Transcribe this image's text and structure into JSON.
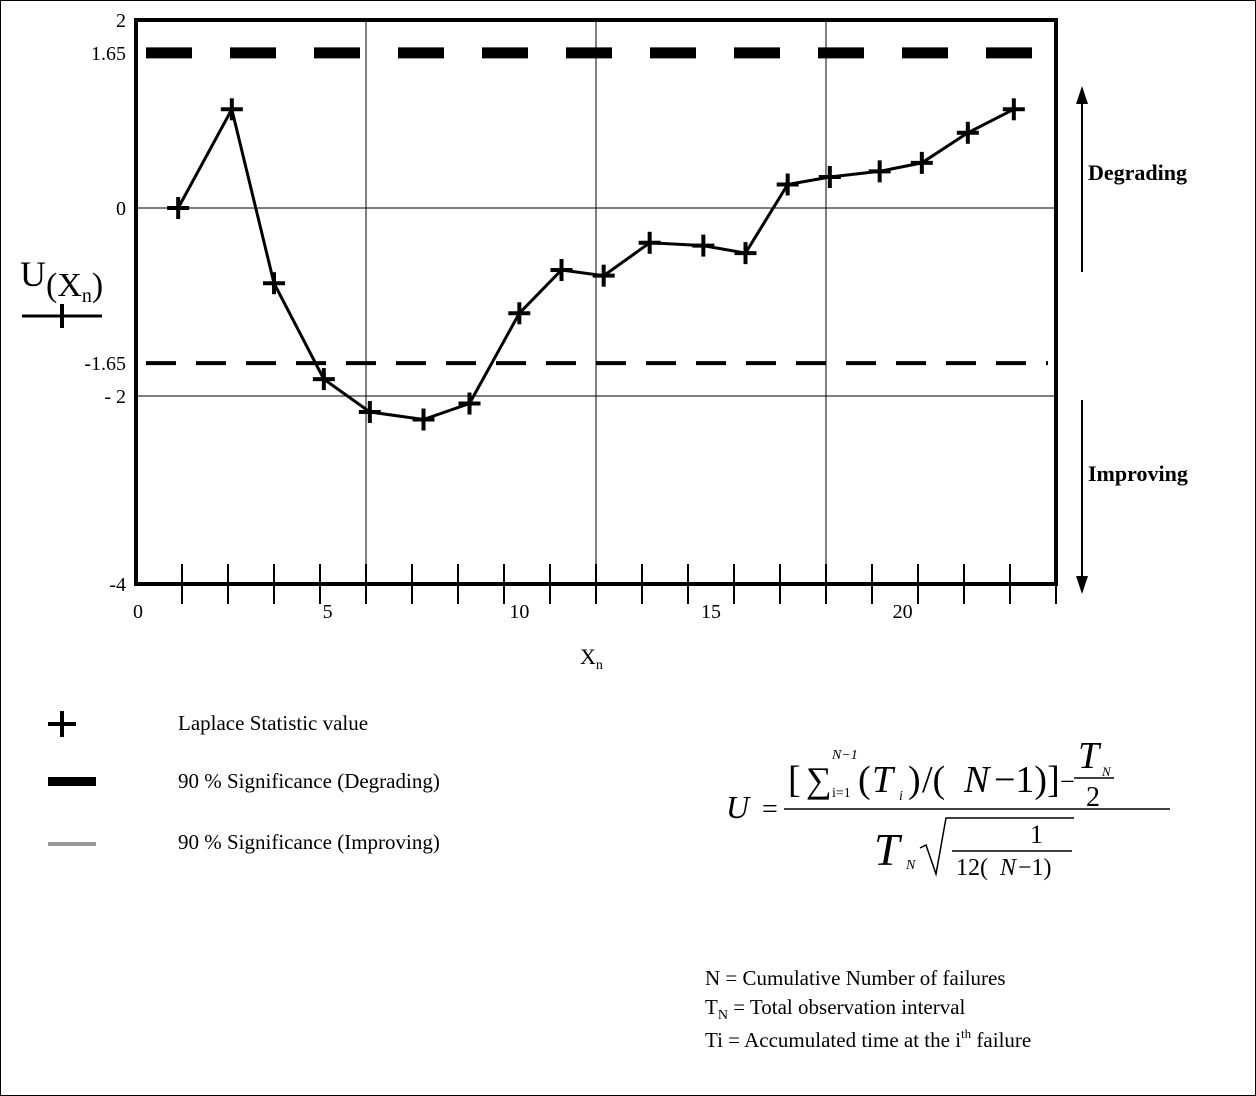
{
  "chart_data": {
    "type": "line",
    "x": [
      1.1,
      2.5,
      3.6,
      4.9,
      6.1,
      7.5,
      8.7,
      10.0,
      11.1,
      12.2,
      13.4,
      14.8,
      15.9,
      17.0,
      18.1,
      19.4,
      20.5,
      21.7,
      22.9
    ],
    "series": [
      {
        "name": "",
        "values": [
          0.0,
          1.05,
          -0.8,
          -1.82,
          -2.17,
          -2.25,
          -2.08,
          -1.12,
          -0.66,
          -0.72,
          -0.37,
          -0.4,
          -0.48,
          0.25,
          0.33,
          0.39,
          0.48,
          0.8,
          1.05
        ]
      }
    ],
    "reference_lines": [
      {
        "name": "90 % Significance (Degrading)",
        "y": 1.65,
        "style": "thick-dashed"
      },
      {
        "name": "90 % Significance (Improving)",
        "y": -1.65,
        "style": "dashed"
      }
    ],
    "xlim": [
      0,
      24
    ],
    "ylim": [
      -4,
      2
    ],
    "xticks": [
      0,
      5,
      10,
      15,
      20
    ],
    "yticks": [
      {
        "value": 2,
        "label": "2"
      },
      {
        "value": 1.65,
        "label": "1.65"
      },
      {
        "value": 0,
        "label": "0"
      },
      {
        "value": -1.65,
        "label": "-1.65"
      },
      {
        "value": -2,
        "label": "- 2"
      },
      {
        "value": -4,
        "label": "-4"
      }
    ],
    "xlabel": {
      "main": "X",
      "sub": "n"
    },
    "ylabel": {
      "main": "U",
      "open": "(X",
      "sub": "n",
      "close": ")"
    },
    "grid": true,
    "annotations": {
      "degrading": "Degrading",
      "improving": "Improving"
    }
  },
  "legend": {
    "items": [
      {
        "label": "Laplace Statistic value",
        "symbol": "plus-marker",
        "color": "#000000"
      },
      {
        "label": "90 % Significance (Degrading)",
        "symbol": "thick-bar",
        "color": "#000000"
      },
      {
        "label": "90 % Significance (Improving)",
        "symbol": "thin-bar",
        "color": "#999999"
      }
    ]
  },
  "formula": {
    "lhs": "U",
    "equals": "=",
    "num_open": "[",
    "sum": "∑",
    "sum_upper": "N−1",
    "sum_lower": "i=1",
    "term_open": "(",
    "term_T": "T",
    "term_sub": "i",
    "term_close": ")",
    "div": "/(",
    "num_N": "N",
    "num_minus_1": "−1)]",
    "minus": "−",
    "frac_T": "T",
    "frac_T_sub": "N",
    "frac_den": "2",
    "den_T": "T",
    "den_T_sub": "N",
    "root_num": "1",
    "root_den_a": "12(",
    "root_den_N": "N",
    "root_den_b": "−1)"
  },
  "notes": [
    {
      "main": "N = Cumulative Number of failures",
      "sub": "",
      "sup": "",
      "rest": ""
    },
    {
      "main": "T",
      "sub": "N",
      "sup": "",
      "rest": " = Total observation interval"
    },
    {
      "main": "T",
      "sub": "",
      "sup": "",
      "rest": "i = Accumulated time at the i",
      "sup2": "th",
      "rest2": " failure"
    }
  ]
}
